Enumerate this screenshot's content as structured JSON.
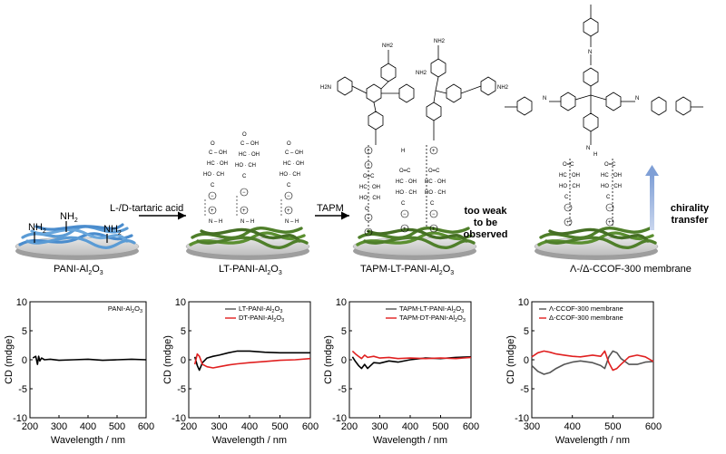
{
  "colors": {
    "pani_blue": "#5a9bd5",
    "green": "#4f7f2a",
    "disc": "#cfcfcf",
    "arrow_blue": "#8faadc",
    "red": "#e02020",
    "black": "#000000",
    "gray": "#555555"
  },
  "top_panel": {
    "step1_reagent": "L-/D-tartaric acid",
    "step2_reagent": "TAPM",
    "nh2_label": "NH",
    "nh2_sub": "2",
    "stages": [
      {
        "name": "PANI-Al",
        "sub1": "2",
        "mid": "O",
        "sub2": "3",
        "suffix": ""
      },
      {
        "name": "LT-PANI-Al",
        "sub1": "2",
        "mid": "O",
        "sub2": "3",
        "suffix": ""
      },
      {
        "name": "TAPM-LT-PANI-Al",
        "sub1": "2",
        "mid": "O",
        "sub2": "3",
        "suffix": ""
      },
      {
        "name": "Λ-/Δ-CCOF-300 membrane",
        "sub1": "",
        "mid": "",
        "sub2": "",
        "suffix": ""
      }
    ],
    "too_weak_lines": [
      "too weak",
      "to be",
      "observed"
    ],
    "chirality_lines": [
      "chirality",
      "transfer"
    ],
    "chem_labels": {
      "nh2": "NH2",
      "h2n": "H2N",
      "cooh": "COOH",
      "oh": "OH",
      "ho": "HO",
      "hc": "HC",
      "ch": "CH",
      "c_o": "C",
      "n": "N",
      "h": "H",
      "o": "O",
      "plus": "+",
      "minus": "−"
    }
  },
  "chart_data": [
    {
      "type": "line",
      "xlabel": "Wavelength / nm",
      "ylabel": "CD (mdge)",
      "xlim": [
        200,
        600
      ],
      "ylim": [
        -10,
        10
      ],
      "xticks": [
        200,
        300,
        400,
        500,
        600
      ],
      "yticks": [
        -10,
        -5,
        0,
        5,
        10
      ],
      "legend": [
        {
          "name": "PANI-Al2O3",
          "color": "none"
        }
      ],
      "series": [
        {
          "name": "PANI-Al2O3",
          "color": "#000000",
          "x": [
            210,
            220,
            226,
            230,
            234,
            240,
            250,
            270,
            300,
            350,
            400,
            450,
            500,
            550,
            600
          ],
          "y": [
            0.3,
            0.6,
            -0.8,
            0.6,
            -0.2,
            0.3,
            0.0,
            0.1,
            -0.1,
            0.0,
            0.1,
            -0.1,
            0.0,
            0.1,
            0.0
          ]
        }
      ]
    },
    {
      "type": "line",
      "xlabel": "Wavelength / nm",
      "ylabel": "CD (mdge)",
      "xlim": [
        200,
        600
      ],
      "ylim": [
        -10,
        10
      ],
      "xticks": [
        200,
        300,
        400,
        500,
        600
      ],
      "yticks": [
        -10,
        -5,
        0,
        5,
        10
      ],
      "legend": [
        {
          "name": "LT-PANI-Al2O3",
          "color": "#555555"
        },
        {
          "name": "DT-PANI-Al2O3",
          "color": "#e02020"
        }
      ],
      "series": [
        {
          "name": "LT-PANI-Al2O3",
          "color": "#000000",
          "x": [
            220,
            228,
            235,
            245,
            260,
            280,
            300,
            330,
            360,
            400,
            450,
            500,
            550,
            600
          ],
          "y": [
            0.5,
            -1.0,
            -1.8,
            -0.5,
            0.3,
            0.6,
            0.8,
            1.2,
            1.5,
            1.5,
            1.3,
            1.2,
            1.2,
            1.2
          ]
        },
        {
          "name": "DT-PANI-Al2O3",
          "color": "#e02020",
          "x": [
            220,
            228,
            235,
            245,
            260,
            280,
            300,
            330,
            360,
            400,
            450,
            500,
            550,
            600
          ],
          "y": [
            -0.8,
            1.0,
            0.6,
            -0.8,
            -1.2,
            -1.4,
            -1.2,
            -0.9,
            -0.7,
            -0.5,
            -0.3,
            -0.1,
            0.0,
            0.2
          ]
        }
      ]
    },
    {
      "type": "line",
      "xlabel": "Wavelength / nm",
      "ylabel": "CD (mdge)",
      "xlim": [
        200,
        600
      ],
      "ylim": [
        -10,
        10
      ],
      "xticks": [
        200,
        300,
        400,
        500,
        600
      ],
      "yticks": [
        -10,
        -5,
        0,
        5,
        10
      ],
      "legend": [
        {
          "name": "TAPM-LT-PANI-Al2O3",
          "color": "#555555"
        },
        {
          "name": "TAPM-DT-PANI-Al2O3",
          "color": "#e02020"
        }
      ],
      "series": [
        {
          "name": "TAPM-LT-PANI-Al2O3",
          "color": "#000000",
          "x": [
            210,
            220,
            230,
            240,
            250,
            260,
            280,
            300,
            330,
            360,
            400,
            450,
            500,
            550,
            600
          ],
          "y": [
            0.5,
            -0.3,
            -1.0,
            -1.5,
            -0.8,
            -1.5,
            -0.5,
            -0.6,
            -0.2,
            -0.4,
            0.0,
            0.3,
            0.2,
            0.4,
            0.5
          ]
        },
        {
          "name": "TAPM-DT-PANI-Al2O3",
          "color": "#e02020",
          "x": [
            210,
            220,
            230,
            240,
            250,
            260,
            280,
            300,
            330,
            360,
            400,
            450,
            500,
            550,
            600
          ],
          "y": [
            1.5,
            1.0,
            0.6,
            0.2,
            0.8,
            0.4,
            0.6,
            0.3,
            0.4,
            0.2,
            0.3,
            0.2,
            0.3,
            0.2,
            0.4
          ]
        }
      ]
    },
    {
      "type": "line",
      "xlabel": "Wavelength / nm",
      "ylabel": "CD (mdge)",
      "xlim": [
        300,
        600
      ],
      "ylim": [
        -10,
        10
      ],
      "xticks": [
        300,
        400,
        500,
        600
      ],
      "yticks": [
        -10,
        -5,
        0,
        5,
        10
      ],
      "legend": [
        {
          "name": "Λ-CCOF-300 membrane",
          "color": "#555555"
        },
        {
          "name": "Δ-CCOF-300 membrane",
          "color": "#e02020"
        }
      ],
      "series": [
        {
          "name": "Λ-CCOF-300 membrane",
          "color": "#555555",
          "x": [
            300,
            315,
            330,
            345,
            360,
            380,
            400,
            420,
            450,
            470,
            480,
            490,
            500,
            510,
            520,
            540,
            560,
            580,
            600
          ],
          "y": [
            -1.0,
            -2.0,
            -2.5,
            -2.2,
            -1.5,
            -0.8,
            -0.4,
            -0.2,
            -0.5,
            -1.0,
            -1.5,
            0.5,
            1.5,
            1.2,
            0.2,
            -0.8,
            -0.8,
            -0.4,
            -0.3
          ]
        },
        {
          "name": "Δ-CCOF-300 membrane",
          "color": "#e02020",
          "x": [
            300,
            315,
            330,
            345,
            360,
            380,
            400,
            420,
            450,
            470,
            480,
            490,
            500,
            510,
            520,
            540,
            560,
            580,
            600
          ],
          "y": [
            0.5,
            1.2,
            1.5,
            1.3,
            1.0,
            0.8,
            0.6,
            0.5,
            0.8,
            0.6,
            1.5,
            -0.5,
            -1.8,
            -1.5,
            -0.8,
            0.5,
            0.8,
            0.5,
            -0.3
          ]
        }
      ]
    }
  ]
}
